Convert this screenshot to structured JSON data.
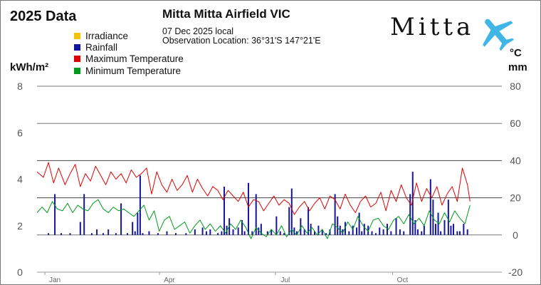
{
  "header": {
    "year_title": "2025 Data",
    "station_name": "Mitta Mitta Airfield VIC",
    "date_line": "07 Dec 2025 local",
    "location_line": "Observation Location: 36°31'S 147°21'E"
  },
  "logo": {
    "text": "Mitta",
    "icon": "airplane-icon",
    "icon_color": "#3fb6e6"
  },
  "axes": {
    "left_unit": "kWh/m²",
    "right_unit_temp": "°C",
    "right_unit_rain": "mm",
    "left_ticks": [
      "8",
      "6",
      "4",
      "2",
      "0"
    ],
    "right_ticks": [
      "80",
      "60",
      "40",
      "20",
      "0",
      "-20"
    ]
  },
  "chart_data": {
    "type": "line",
    "title": "Mitta Mitta Airfield VIC",
    "x_range_days": [
      1,
      341
    ],
    "left_axis": {
      "label": "kWh/m²",
      "ylim": [
        0,
        8
      ]
    },
    "right_axis": {
      "label": "°C / mm",
      "ylim": [
        -20,
        80
      ]
    },
    "month_labels": [
      {
        "label": "Jan",
        "day": 15
      },
      {
        "label": "Apr",
        "day": 105
      },
      {
        "label": "Jul",
        "day": 196
      },
      {
        "label": "Oct",
        "day": 288
      }
    ],
    "legend": [
      {
        "name": "Irradiance",
        "color": "#f5c400"
      },
      {
        "name": "Rainfall",
        "color": "#1515a0"
      },
      {
        "name": "Maximum Temperature",
        "color": "#e00000"
      },
      {
        "name": "Minimum Temperature",
        "color": "#009a1a"
      }
    ],
    "series": [
      {
        "name": "Irradiance",
        "color": "#f5c400",
        "axis": "left",
        "points": []
      },
      {
        "name": "Maximum Temperature",
        "color": "#e00000",
        "axis": "right",
        "points": [
          [
            1,
            34
          ],
          [
            6,
            31
          ],
          [
            10,
            39
          ],
          [
            14,
            28
          ],
          [
            18,
            36
          ],
          [
            23,
            27
          ],
          [
            27,
            33
          ],
          [
            31,
            38
          ],
          [
            35,
            26
          ],
          [
            39,
            33
          ],
          [
            43,
            29
          ],
          [
            47,
            37
          ],
          [
            51,
            32
          ],
          [
            55,
            27
          ],
          [
            59,
            34
          ],
          [
            63,
            30
          ],
          [
            67,
            33
          ],
          [
            71,
            28
          ],
          [
            75,
            35
          ],
          [
            79,
            31
          ],
          [
            83,
            33
          ],
          [
            87,
            36
          ],
          [
            91,
            22
          ],
          [
            95,
            34
          ],
          [
            99,
            27
          ],
          [
            103,
            23
          ],
          [
            107,
            30
          ],
          [
            111,
            24
          ],
          [
            115,
            27
          ],
          [
            119,
            32
          ],
          [
            123,
            23
          ],
          [
            127,
            30
          ],
          [
            131,
            25
          ],
          [
            135,
            21
          ],
          [
            139,
            26
          ],
          [
            143,
            24
          ],
          [
            147,
            19
          ],
          [
            151,
            24
          ],
          [
            155,
            21
          ],
          [
            159,
            18
          ],
          [
            163,
            23
          ],
          [
            167,
            15
          ],
          [
            171,
            19
          ],
          [
            175,
            18
          ],
          [
            179,
            13
          ],
          [
            183,
            17
          ],
          [
            187,
            21
          ],
          [
            191,
            16
          ],
          [
            195,
            19
          ],
          [
            199,
            17
          ],
          [
            203,
            11
          ],
          [
            207,
            15
          ],
          [
            211,
            18
          ],
          [
            215,
            13
          ],
          [
            219,
            17
          ],
          [
            223,
            20
          ],
          [
            227,
            14
          ],
          [
            231,
            21
          ],
          [
            235,
            19
          ],
          [
            239,
            14
          ],
          [
            243,
            22
          ],
          [
            247,
            16
          ],
          [
            251,
            12
          ],
          [
            255,
            18
          ],
          [
            259,
            21
          ],
          [
            263,
            15
          ],
          [
            267,
            17
          ],
          [
            271,
            23
          ],
          [
            275,
            13
          ],
          [
            279,
            24
          ],
          [
            283,
            18
          ],
          [
            287,
            27
          ],
          [
            291,
            20
          ],
          [
            295,
            16
          ],
          [
            299,
            28
          ],
          [
            303,
            18
          ],
          [
            307,
            25
          ],
          [
            311,
            20
          ],
          [
            315,
            26
          ],
          [
            319,
            16
          ],
          [
            323,
            22
          ],
          [
            327,
            26
          ],
          [
            331,
            18
          ],
          [
            335,
            36
          ],
          [
            339,
            27
          ],
          [
            341,
            18
          ]
        ]
      },
      {
        "name": "Minimum Temperature",
        "color": "#009a1a",
        "axis": "right",
        "points": [
          [
            1,
            12
          ],
          [
            5,
            15
          ],
          [
            9,
            12
          ],
          [
            13,
            18
          ],
          [
            17,
            14
          ],
          [
            21,
            13
          ],
          [
            25,
            17
          ],
          [
            29,
            12
          ],
          [
            33,
            16
          ],
          [
            37,
            14
          ],
          [
            41,
            13
          ],
          [
            45,
            17
          ],
          [
            49,
            19
          ],
          [
            53,
            14
          ],
          [
            57,
            12
          ],
          [
            61,
            15
          ],
          [
            65,
            13
          ],
          [
            69,
            14
          ],
          [
            73,
            12
          ],
          [
            77,
            10
          ],
          [
            81,
            13
          ],
          [
            85,
            16
          ],
          [
            89,
            8
          ],
          [
            93,
            13
          ],
          [
            97,
            2
          ],
          [
            101,
            8
          ],
          [
            105,
            10
          ],
          [
            109,
            3
          ],
          [
            113,
            5
          ],
          [
            117,
            7
          ],
          [
            121,
            1
          ],
          [
            125,
            5
          ],
          [
            129,
            8
          ],
          [
            133,
            3
          ],
          [
            137,
            6
          ],
          [
            141,
            2
          ],
          [
            145,
            5
          ],
          [
            149,
            1
          ],
          [
            153,
            6
          ],
          [
            157,
            3
          ],
          [
            161,
            8
          ],
          [
            165,
            4
          ],
          [
            169,
            -2
          ],
          [
            173,
            4
          ],
          [
            177,
            1
          ],
          [
            181,
            -1
          ],
          [
            185,
            3
          ],
          [
            189,
            0
          ],
          [
            193,
            5
          ],
          [
            197,
            -1
          ],
          [
            201,
            3
          ],
          [
            205,
            0
          ],
          [
            209,
            5
          ],
          [
            213,
            1
          ],
          [
            217,
            4
          ],
          [
            221,
            0
          ],
          [
            225,
            3
          ],
          [
            229,
            -2
          ],
          [
            233,
            6
          ],
          [
            237,
            4
          ],
          [
            241,
            1
          ],
          [
            245,
            7
          ],
          [
            249,
            3
          ],
          [
            253,
            10
          ],
          [
            257,
            5
          ],
          [
            261,
            2
          ],
          [
            265,
            8
          ],
          [
            269,
            9
          ],
          [
            273,
            5
          ],
          [
            277,
            3
          ],
          [
            281,
            8
          ],
          [
            285,
            10
          ],
          [
            289,
            6
          ],
          [
            293,
            11
          ],
          [
            297,
            6
          ],
          [
            301,
            9
          ],
          [
            305,
            5
          ],
          [
            309,
            13
          ],
          [
            313,
            8
          ],
          [
            317,
            6
          ],
          [
            321,
            12
          ],
          [
            325,
            7
          ],
          [
            329,
            13
          ],
          [
            333,
            9
          ],
          [
            337,
            6
          ],
          [
            341,
            16
          ]
        ]
      },
      {
        "name": "Rainfall",
        "color": "#1515a0",
        "axis": "right",
        "style": "bar",
        "points": [
          [
            10,
            1
          ],
          [
            15,
            22
          ],
          [
            20,
            1
          ],
          [
            27,
            1
          ],
          [
            35,
            7
          ],
          [
            38,
            22
          ],
          [
            44,
            1
          ],
          [
            48,
            3
          ],
          [
            53,
            1
          ],
          [
            57,
            3
          ],
          [
            63,
            1
          ],
          [
            67,
            17
          ],
          [
            72,
            1
          ],
          [
            76,
            7
          ],
          [
            78,
            2
          ],
          [
            80,
            12
          ],
          [
            82,
            32
          ],
          [
            84,
            1
          ],
          [
            89,
            2
          ],
          [
            96,
            1
          ],
          [
            103,
            2
          ],
          [
            110,
            1
          ],
          [
            118,
            1
          ],
          [
            125,
            3
          ],
          [
            131,
            4
          ],
          [
            134,
            2
          ],
          [
            137,
            3
          ],
          [
            143,
            1
          ],
          [
            146,
            2
          ],
          [
            148,
            26
          ],
          [
            150,
            5
          ],
          [
            152,
            9
          ],
          [
            155,
            3
          ],
          [
            159,
            4
          ],
          [
            162,
            8
          ],
          [
            164,
            2
          ],
          [
            167,
            28
          ],
          [
            170,
            2
          ],
          [
            173,
            22
          ],
          [
            175,
            4
          ],
          [
            177,
            6
          ],
          [
            182,
            2
          ],
          [
            185,
            3
          ],
          [
            189,
            10
          ],
          [
            192,
            2
          ],
          [
            195,
            1
          ],
          [
            199,
            15
          ],
          [
            201,
            25
          ],
          [
            203,
            4
          ],
          [
            205,
            2
          ],
          [
            208,
            9
          ],
          [
            211,
            3
          ],
          [
            214,
            15
          ],
          [
            216,
            6
          ],
          [
            219,
            2
          ],
          [
            222,
            5
          ],
          [
            225,
            3
          ],
          [
            228,
            1
          ],
          [
            231,
            3
          ],
          [
            235,
            22
          ],
          [
            237,
            10
          ],
          [
            239,
            5
          ],
          [
            241,
            3
          ],
          [
            243,
            7
          ],
          [
            246,
            2
          ],
          [
            249,
            5
          ],
          [
            252,
            4
          ],
          [
            254,
            12
          ],
          [
            256,
            2
          ],
          [
            258,
            6
          ],
          [
            261,
            5
          ],
          [
            264,
            2
          ],
          [
            267,
            1
          ],
          [
            270,
            4
          ],
          [
            273,
            3
          ],
          [
            276,
            6
          ],
          [
            279,
            2
          ],
          [
            283,
            9
          ],
          [
            286,
            3
          ],
          [
            289,
            2
          ],
          [
            294,
            22
          ],
          [
            296,
            34
          ],
          [
            298,
            8
          ],
          [
            300,
            3
          ],
          [
            303,
            2
          ],
          [
            305,
            5
          ],
          [
            310,
            30
          ],
          [
            312,
            19
          ],
          [
            314,
            6
          ],
          [
            316,
            12
          ],
          [
            318,
            2
          ],
          [
            321,
            8
          ],
          [
            324,
            19
          ],
          [
            326,
            5
          ],
          [
            328,
            6
          ],
          [
            331,
            2
          ],
          [
            333,
            2
          ],
          [
            336,
            6
          ],
          [
            339,
            3
          ]
        ]
      }
    ]
  }
}
